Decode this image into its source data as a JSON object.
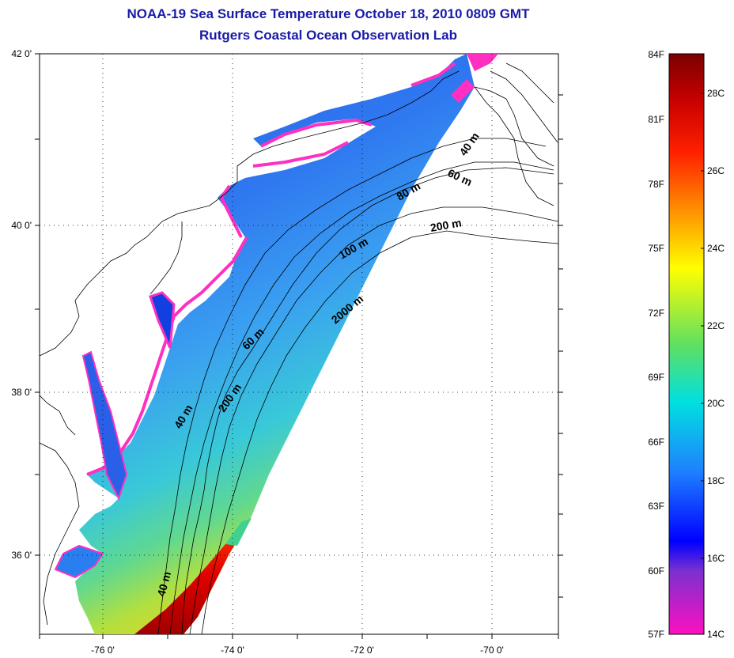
{
  "title": {
    "line1": "NOAA-19 Sea Surface Temperature October 18, 2010 0809 GMT",
    "line2": "Rutgers Coastal Ocean Observation Lab"
  },
  "map": {
    "lat_labels": [
      "42 0'",
      "40 0'",
      "38 0'",
      "36 0'"
    ],
    "lon_labels": [
      "-76 0'",
      "-74 0'",
      "-72 0'",
      "-70 0'"
    ],
    "contour_labels": [
      "40 m",
      "60 m",
      "80 m",
      "200 m",
      "100 m",
      "2000 m",
      "60 m",
      "200 m",
      "40 m",
      "40 m"
    ]
  },
  "colorbar": {
    "fahrenheit": [
      "84F",
      "81F",
      "78F",
      "75F",
      "72F",
      "69F",
      "66F",
      "63F",
      "60F",
      "57F"
    ],
    "celsius": [
      "28C",
      "26C",
      "24C",
      "22C",
      "20C",
      "18C",
      "16C",
      "14C"
    ],
    "colors": [
      "#8b0000",
      "#ff0000",
      "#ff8c00",
      "#ffff00",
      "#7cfc00",
      "#00e5e5",
      "#1e90ff",
      "#0000ff",
      "#8a2be2",
      "#ff1493"
    ]
  }
}
